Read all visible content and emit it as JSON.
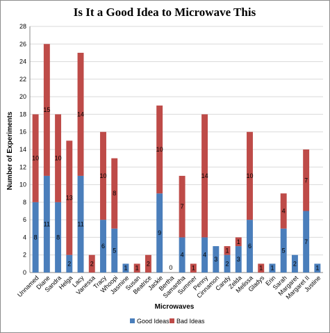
{
  "chart_data": {
    "type": "bar",
    "stacked": true,
    "title": "Is It a Good Idea to Microwave This",
    "xlabel": "Microwaves",
    "ylabel": "Number of Experiments",
    "ylim": [
      0,
      28
    ],
    "ytick_step": 2,
    "grid": true,
    "legend_position": "bottom",
    "categories": [
      "Unnamed",
      "Diane",
      "Sandra",
      "Helga",
      "Lacy",
      "Vanessa",
      "Tracy",
      "Whoopi",
      "Jasmine",
      "Susan",
      "Beatrice",
      "Jackie",
      "Bertha",
      "Samantha",
      "Summer",
      "Penny",
      "Cinnamon",
      "Candy",
      "Zelda",
      "Melissa",
      "Gladys",
      "Erin",
      "Sarah",
      "Margaret",
      "Margaret II",
      "Justine"
    ],
    "series": [
      {
        "name": "Good Ideas",
        "color": "#4a7ebb",
        "values": [
          8,
          11,
          8,
          2,
          11,
          0,
          6,
          5,
          1,
          0,
          0,
          9,
          0,
          4,
          0,
          4,
          3,
          2,
          3,
          6,
          0,
          1,
          5,
          2,
          7,
          1
        ]
      },
      {
        "name": "Bad Ideas",
        "color": "#be4b48",
        "values": [
          10,
          15,
          10,
          13,
          14,
          2,
          10,
          8,
          0,
          1,
          2,
          10,
          0,
          7,
          1,
          14,
          0,
          1,
          1,
          10,
          1,
          0,
          4,
          0,
          7,
          0
        ]
      }
    ],
    "value_labels": [
      "0",
      "2",
      "4",
      "6",
      "8",
      "10",
      "12",
      "14",
      "16",
      "18",
      "20",
      "22",
      "24",
      "26",
      "28"
    ]
  }
}
